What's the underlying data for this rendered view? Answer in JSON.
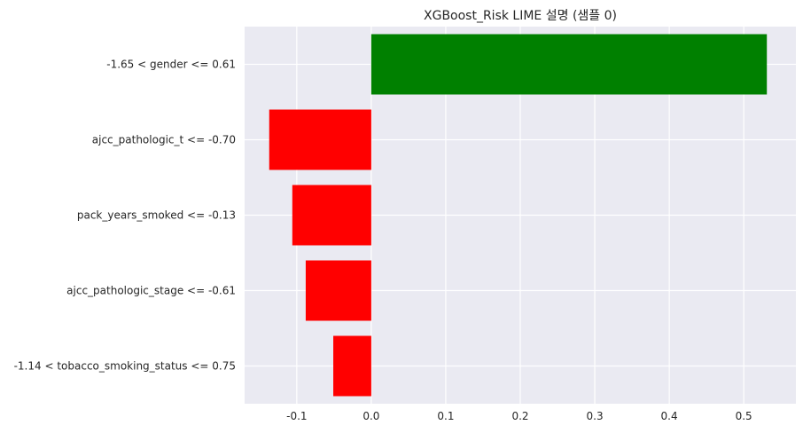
{
  "chart_data": {
    "type": "bar",
    "orientation": "horizontal",
    "title": "XGBoost_Risk LIME 설명 (샘플 0)",
    "xlabel": "",
    "ylabel": "",
    "categories": [
      "-1.65 < gender <= 0.61",
      "ajcc_pathologic_t <= -0.70",
      "pack_years_smoked <= -0.13",
      "ajcc_pathologic_stage <= -0.61",
      "-1.14 < tobacco_smoking_status <= 0.75"
    ],
    "values": [
      0.531,
      -0.137,
      -0.106,
      -0.088,
      -0.051
    ],
    "xlim": [
      -0.17,
      0.57
    ],
    "xticks": [
      -0.1,
      0.0,
      0.1,
      0.2,
      0.3,
      0.4,
      0.5
    ],
    "xtick_labels": [
      "-0.1",
      "0.0",
      "0.1",
      "0.2",
      "0.3",
      "0.4",
      "0.5"
    ],
    "grid": true,
    "colors": {
      "positive": "#008000",
      "negative": "#ff0000",
      "background": "#eaeaf2",
      "grid": "#ffffff",
      "text": "#262626"
    }
  }
}
